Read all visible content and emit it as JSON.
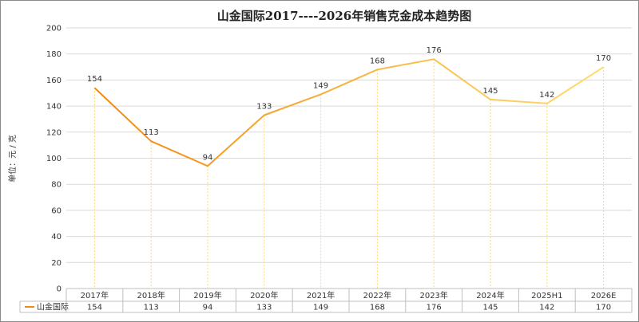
{
  "chart_data": {
    "type": "line",
    "title": "山金国际2017----2026年销售克金成本趋势图",
    "xlabel": "",
    "ylabel": "单位：元 / 克",
    "ylim": [
      0,
      200
    ],
    "yticks": [
      0,
      20,
      40,
      60,
      80,
      100,
      120,
      140,
      160,
      180,
      200
    ],
    "grid": true,
    "categories": [
      "2017年",
      "2018年",
      "2019年",
      "2020年",
      "2021年",
      "2022年",
      "2023年",
      "2024年",
      "2025H1",
      "2026E"
    ],
    "series": [
      {
        "name": "山金国际",
        "values": [
          154,
          113,
          94,
          133,
          149,
          168,
          176,
          145,
          142,
          170
        ]
      }
    ],
    "data_table": true,
    "colors": {
      "line_start": "#F08A10",
      "line_end": "#FFDD6E",
      "drop_line": "#FFD966",
      "grid": "#D9D9D9"
    }
  }
}
